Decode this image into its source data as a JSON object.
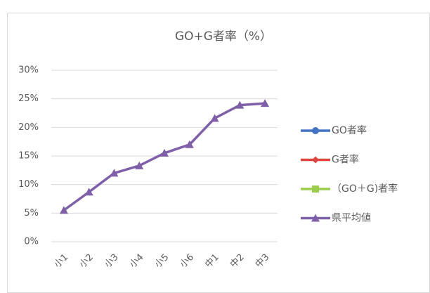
{
  "chart_data": {
    "type": "line",
    "title": "GO+G者率（%）",
    "categories": [
      "小1",
      "小2",
      "小3",
      "小4",
      "小5",
      "小6",
      "中1",
      "中2",
      "中3"
    ],
    "series": [
      {
        "name": "GO者率",
        "color": "#4472c4",
        "marker": "circle",
        "values": [
          null,
          null,
          null,
          null,
          null,
          null,
          null,
          null,
          null
        ]
      },
      {
        "name": "G者率",
        "color": "#e0443e",
        "marker": "diamond",
        "values": [
          null,
          null,
          null,
          null,
          null,
          null,
          null,
          null,
          null
        ]
      },
      {
        "name": "（GO＋G)者率",
        "color": "#9bcc4e",
        "marker": "square",
        "values": [
          null,
          null,
          null,
          null,
          null,
          null,
          null,
          null,
          null
        ]
      },
      {
        "name": "県平均値",
        "color": "#7f5fa8",
        "marker": "triangle",
        "values": [
          5.5,
          8.7,
          12.0,
          13.3,
          15.5,
          17.0,
          21.6,
          23.9,
          24.2
        ]
      }
    ],
    "ylim": [
      0,
      30
    ],
    "yticks": [
      {
        "value": 0,
        "label": "0%"
      },
      {
        "value": 5,
        "label": "5%"
      },
      {
        "value": 10,
        "label": "10%"
      },
      {
        "value": 15,
        "label": "15%"
      },
      {
        "value": 20,
        "label": "20%"
      },
      {
        "value": 25,
        "label": "25%"
      },
      {
        "value": 30,
        "label": "30%"
      }
    ],
    "grid": true,
    "legend": "right"
  }
}
